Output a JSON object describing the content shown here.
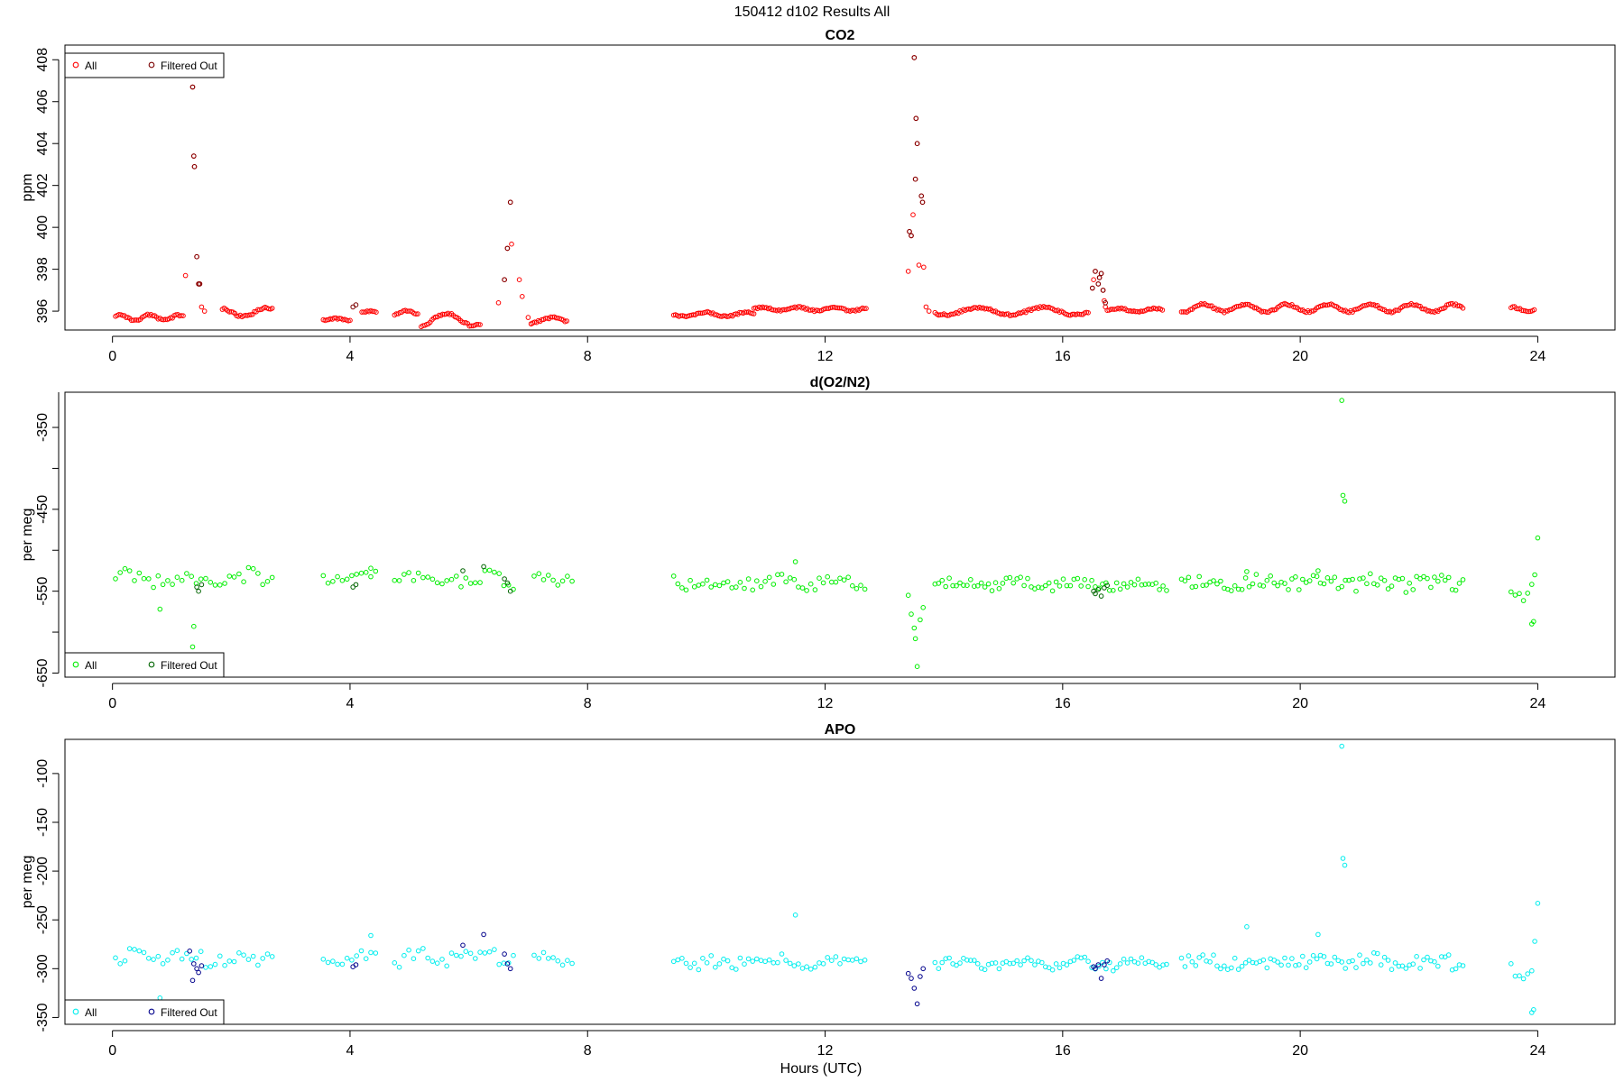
{
  "figure": {
    "main_title": "150412   d102   Results All",
    "xlabel": "Hours (UTC)"
  },
  "chart_data": [
    {
      "type": "scatter",
      "title": "CO2",
      "ylabel": "ppm",
      "xlim": [
        -0.8,
        25.3
      ],
      "ylim": [
        395.1,
        408.7
      ],
      "xticks": [
        0,
        4,
        8,
        12,
        16,
        20,
        24
      ],
      "yticks": [
        396,
        398,
        400,
        402,
        404,
        406,
        408
      ],
      "grid": false,
      "legend_position": "top-left",
      "series": [
        {
          "name": "All",
          "color": "#ff0000",
          "marker": "open-circle",
          "segments": [
            {
              "start": 0.05,
              "end": 1.2,
              "step": 0.03,
              "base": 395.7,
              "amp": 0.12,
              "period": 0.5,
              "noise": 0.05
            },
            {
              "start": 1.85,
              "end": 2.7,
              "step": 0.03,
              "base": 395.95,
              "amp": 0.2,
              "period": 0.8,
              "noise": 0.05
            },
            {
              "start": 3.55,
              "end": 4.0,
              "step": 0.03,
              "base": 395.6,
              "amp": 0.05,
              "period": 0.6,
              "noise": 0.04
            },
            {
              "start": 4.2,
              "end": 4.45,
              "step": 0.03,
              "base": 395.95,
              "amp": 0.05,
              "period": 0.6,
              "noise": 0.03
            },
            {
              "start": 4.75,
              "end": 5.15,
              "step": 0.03,
              "base": 395.9,
              "amp": 0.1,
              "period": 0.6,
              "noise": 0.04
            },
            {
              "start": 5.2,
              "end": 6.2,
              "step": 0.03,
              "base": 395.6,
              "amp": 0.3,
              "period": 0.9,
              "noise": 0.05
            },
            {
              "start": 7.05,
              "end": 7.65,
              "step": 0.03,
              "base": 395.55,
              "amp": 0.15,
              "period": 0.8,
              "noise": 0.05
            },
            {
              "start": 9.45,
              "end": 10.8,
              "step": 0.03,
              "base": 395.85,
              "amp": 0.1,
              "period": 0.7,
              "noise": 0.04
            },
            {
              "start": 10.8,
              "end": 12.7,
              "step": 0.03,
              "base": 396.1,
              "amp": 0.08,
              "period": 0.6,
              "noise": 0.04
            },
            {
              "start": 13.85,
              "end": 16.45,
              "step": 0.03,
              "base": 396.0,
              "amp": 0.18,
              "period": 1.1,
              "noise": 0.05
            },
            {
              "start": 16.75,
              "end": 17.7,
              "step": 0.03,
              "base": 396.05,
              "amp": 0.08,
              "period": 0.6,
              "noise": 0.04
            },
            {
              "start": 18.0,
              "end": 22.75,
              "step": 0.03,
              "base": 396.15,
              "amp": 0.18,
              "period": 0.7,
              "noise": 0.05
            },
            {
              "start": 23.55,
              "end": 23.95,
              "step": 0.03,
              "base": 396.1,
              "amp": 0.1,
              "period": 0.6,
              "noise": 0.04
            }
          ],
          "points": [
            [
              1.23,
              397.7
            ],
            [
              1.35,
              406.7
            ],
            [
              1.37,
              403.4
            ],
            [
              1.38,
              402.9
            ],
            [
              1.42,
              398.6
            ],
            [
              1.45,
              397.3
            ],
            [
              1.47,
              397.3
            ],
            [
              1.5,
              396.2
            ],
            [
              1.55,
              396.0
            ],
            [
              6.5,
              396.4
            ],
            [
              6.6,
              397.5
            ],
            [
              6.65,
              399.0
            ],
            [
              6.7,
              401.2
            ],
            [
              6.72,
              399.2
            ],
            [
              6.85,
              397.5
            ],
            [
              6.9,
              396.7
            ],
            [
              7.0,
              395.7
            ],
            [
              7.05,
              395.4
            ],
            [
              13.4,
              397.9
            ],
            [
              13.42,
              399.8
            ],
            [
              13.45,
              399.6
            ],
            [
              13.48,
              400.6
            ],
            [
              13.5,
              408.1
            ],
            [
              13.52,
              402.3
            ],
            [
              13.53,
              405.2
            ],
            [
              13.55,
              404.0
            ],
            [
              13.58,
              398.2
            ],
            [
              13.62,
              401.5
            ],
            [
              13.64,
              401.2
            ],
            [
              13.66,
              398.1
            ],
            [
              13.7,
              396.2
            ],
            [
              13.75,
              396.0
            ],
            [
              16.5,
              397.1
            ],
            [
              16.52,
              397.5
            ],
            [
              16.55,
              397.9
            ],
            [
              16.6,
              397.3
            ],
            [
              16.62,
              397.6
            ],
            [
              16.65,
              397.8
            ],
            [
              16.68,
              397.0
            ],
            [
              16.7,
              396.5
            ],
            [
              16.72,
              396.2
            ]
          ]
        },
        {
          "name": "Filtered Out",
          "color": "#7a0000",
          "marker": "open-circle",
          "points": [
            [
              1.35,
              406.7
            ],
            [
              1.37,
              403.4
            ],
            [
              1.38,
              402.9
            ],
            [
              1.42,
              398.6
            ],
            [
              1.45,
              397.3
            ],
            [
              1.47,
              397.3
            ],
            [
              4.05,
              396.2
            ],
            [
              4.1,
              396.3
            ],
            [
              6.6,
              397.5
            ],
            [
              6.65,
              399.0
            ],
            [
              6.7,
              401.2
            ],
            [
              13.42,
              399.8
            ],
            [
              13.45,
              399.6
            ],
            [
              13.5,
              408.1
            ],
            [
              13.52,
              402.3
            ],
            [
              13.53,
              405.2
            ],
            [
              13.55,
              404.0
            ],
            [
              13.62,
              401.5
            ],
            [
              13.64,
              401.2
            ],
            [
              16.5,
              397.1
            ],
            [
              16.55,
              397.9
            ],
            [
              16.6,
              397.3
            ],
            [
              16.62,
              397.6
            ],
            [
              16.65,
              397.8
            ],
            [
              16.68,
              397.0
            ],
            [
              16.72,
              396.4
            ]
          ]
        }
      ]
    },
    {
      "type": "scatter",
      "title": "d(O2/N2)",
      "ylabel": "per meg",
      "xlim": [
        -0.8,
        25.3
      ],
      "ylim": [
        -655,
        -307
      ],
      "xticks": [
        0,
        4,
        8,
        12,
        16,
        20,
        24
      ],
      "yticks": [
        -650,
        -550,
        -450,
        -350
      ],
      "ytick_minor": [
        -600,
        -500,
        -400,
        -300
      ],
      "grid": false,
      "legend_position": "bottom-left",
      "series": [
        {
          "name": "All",
          "color": "#00ee00",
          "marker": "open-circle",
          "segments": [
            {
              "start": 0.05,
              "end": 2.75,
              "step": 0.08,
              "base": -535,
              "amp": 5,
              "period": 1.0,
              "noise": 9
            },
            {
              "start": 3.55,
              "end": 4.5,
              "step": 0.08,
              "base": -532,
              "amp": 3,
              "period": 1.0,
              "noise": 6
            },
            {
              "start": 4.75,
              "end": 6.8,
              "step": 0.08,
              "base": -535,
              "amp": 4,
              "period": 1.0,
              "noise": 9
            },
            {
              "start": 7.1,
              "end": 7.75,
              "step": 0.08,
              "base": -537,
              "amp": 3,
              "period": 1.0,
              "noise": 8
            },
            {
              "start": 9.45,
              "end": 12.7,
              "step": 0.07,
              "base": -540,
              "amp": 3,
              "period": 1.0,
              "noise": 8
            },
            {
              "start": 13.85,
              "end": 17.75,
              "step": 0.06,
              "base": -541,
              "amp": 3,
              "period": 1.0,
              "noise": 6
            },
            {
              "start": 18.0,
              "end": 22.75,
              "step": 0.06,
              "base": -540,
              "amp": 3,
              "period": 1.0,
              "noise": 9
            },
            {
              "start": 23.55,
              "end": 23.95,
              "step": 0.07,
              "base": -548,
              "amp": 3,
              "period": 1.0,
              "noise": 12
            }
          ],
          "points": [
            [
              0.8,
              -572
            ],
            [
              1.35,
              -618
            ],
            [
              1.37,
              -593
            ],
            [
              4.35,
              -522
            ],
            [
              11.5,
              -514
            ],
            [
              13.4,
              -555
            ],
            [
              13.45,
              -578
            ],
            [
              13.5,
              -595
            ],
            [
              13.52,
              -608
            ],
            [
              13.55,
              -642
            ],
            [
              13.6,
              -585
            ],
            [
              13.65,
              -570
            ],
            [
              19.1,
              -526
            ],
            [
              20.3,
              -525
            ],
            [
              20.7,
              -317
            ],
            [
              20.72,
              -433
            ],
            [
              20.75,
              -440
            ],
            [
              23.9,
              -590
            ],
            [
              23.93,
              -587
            ],
            [
              23.95,
              -530
            ],
            [
              24.0,
              -485
            ]
          ]
        },
        {
          "name": "Filtered Out",
          "color": "#006400",
          "marker": "open-circle",
          "points": [
            [
              1.42,
              -545
            ],
            [
              1.45,
              -550
            ],
            [
              1.5,
              -542
            ],
            [
              4.05,
              -545
            ],
            [
              4.1,
              -542
            ],
            [
              5.9,
              -525
            ],
            [
              6.25,
              -520
            ],
            [
              6.6,
              -535
            ],
            [
              6.65,
              -540
            ],
            [
              6.7,
              -550
            ],
            [
              16.52,
              -550
            ],
            [
              16.55,
              -553
            ],
            [
              16.6,
              -548
            ],
            [
              16.65,
              -556
            ],
            [
              16.7,
              -546
            ],
            [
              16.75,
              -543
            ]
          ]
        }
      ]
    },
    {
      "type": "scatter",
      "title": "APO",
      "ylabel": "per meg",
      "xlim": [
        -0.8,
        25.3
      ],
      "ylim": [
        -357,
        -65
      ],
      "xticks": [
        0,
        4,
        8,
        12,
        16,
        20,
        24
      ],
      "yticks": [
        -350,
        -300,
        -250,
        -200,
        -150,
        -100
      ],
      "grid": false,
      "legend_position": "bottom-left",
      "series": [
        {
          "name": "All",
          "color": "#00eeee",
          "marker": "open-circle",
          "segments": [
            {
              "start": 0.05,
              "end": 2.75,
              "step": 0.08,
              "base": -290,
              "amp": 4,
              "period": 1.0,
              "noise": 8
            },
            {
              "start": 3.55,
              "end": 4.5,
              "step": 0.08,
              "base": -289,
              "amp": 3,
              "period": 1.0,
              "noise": 5
            },
            {
              "start": 4.75,
              "end": 6.8,
              "step": 0.08,
              "base": -288,
              "amp": 4,
              "period": 1.0,
              "noise": 8
            },
            {
              "start": 7.1,
              "end": 7.75,
              "step": 0.08,
              "base": -293,
              "amp": 3,
              "period": 1.0,
              "noise": 7
            },
            {
              "start": 9.45,
              "end": 12.7,
              "step": 0.07,
              "base": -294,
              "amp": 3,
              "period": 1.0,
              "noise": 7
            },
            {
              "start": 13.85,
              "end": 17.75,
              "step": 0.06,
              "base": -295,
              "amp": 3,
              "period": 1.0,
              "noise": 5
            },
            {
              "start": 18.0,
              "end": 22.75,
              "step": 0.06,
              "base": -293,
              "amp": 3,
              "period": 1.0,
              "noise": 8
            },
            {
              "start": 23.55,
              "end": 23.95,
              "step": 0.07,
              "base": -300,
              "amp": 3,
              "period": 1.0,
              "noise": 10
            }
          ],
          "points": [
            [
              0.8,
              -330
            ],
            [
              4.35,
              -266
            ],
            [
              11.5,
              -245
            ],
            [
              19.1,
              -257
            ],
            [
              20.3,
              -265
            ],
            [
              20.7,
              -72
            ],
            [
              20.72,
              -187
            ],
            [
              20.75,
              -194
            ],
            [
              23.9,
              -345
            ],
            [
              23.93,
              -342
            ],
            [
              23.95,
              -272
            ],
            [
              24.0,
              -233
            ]
          ]
        },
        {
          "name": "Filtered Out",
          "color": "#00008b",
          "marker": "open-circle",
          "points": [
            [
              1.3,
              -282
            ],
            [
              1.35,
              -312
            ],
            [
              1.37,
              -295
            ],
            [
              1.42,
              -300
            ],
            [
              1.45,
              -304
            ],
            [
              1.5,
              -297
            ],
            [
              4.05,
              -298
            ],
            [
              4.1,
              -296
            ],
            [
              5.9,
              -276
            ],
            [
              6.25,
              -265
            ],
            [
              6.6,
              -285
            ],
            [
              6.65,
              -295
            ],
            [
              6.7,
              -300
            ],
            [
              13.4,
              -305
            ],
            [
              13.45,
              -310
            ],
            [
              13.5,
              -320
            ],
            [
              13.55,
              -336
            ],
            [
              13.6,
              -308
            ],
            [
              13.65,
              -300
            ],
            [
              16.52,
              -298
            ],
            [
              16.55,
              -300
            ],
            [
              16.6,
              -296
            ],
            [
              16.65,
              -310
            ],
            [
              16.7,
              -296
            ],
            [
              16.75,
              -292
            ]
          ]
        }
      ]
    }
  ]
}
